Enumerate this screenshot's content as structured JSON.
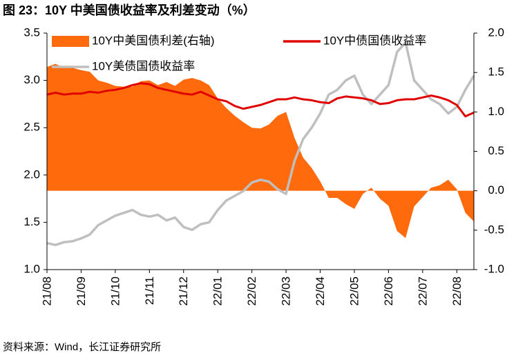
{
  "chart_data": {
    "type": "line",
    "title": "图 23：10Y 中美国债收益率及利差变动（%）",
    "source": "资料来源：Wind，长江证券研究所",
    "categories": [
      "21/08",
      null,
      null,
      null,
      "21/09",
      null,
      null,
      null,
      "21/10",
      null,
      null,
      null,
      "21/11",
      null,
      null,
      null,
      "21/12",
      null,
      null,
      null,
      "22/01",
      null,
      null,
      null,
      "22/02",
      null,
      null,
      null,
      "22/03",
      null,
      null,
      null,
      "22/04",
      null,
      null,
      null,
      "22/05",
      null,
      null,
      null,
      "22/06",
      null,
      null,
      null,
      "22/07",
      null,
      null,
      null,
      "22/08",
      null,
      null
    ],
    "series": [
      {
        "name": "10Y中美国债利差(右轴)",
        "type": "area",
        "axis": "y2",
        "color": "#ff6a0d",
        "values": [
          1.57,
          1.61,
          1.56,
          1.56,
          1.53,
          1.51,
          1.4,
          1.37,
          1.33,
          1.32,
          1.32,
          1.39,
          1.4,
          1.34,
          1.38,
          1.33,
          1.41,
          1.43,
          1.4,
          1.34,
          1.17,
          1.05,
          0.95,
          0.87,
          0.8,
          0.79,
          0.84,
          0.95,
          1.0,
          0.67,
          0.42,
          0.29,
          0.12,
          -0.09,
          -0.09,
          -0.17,
          -0.23,
          -0.04,
          0.04,
          -0.1,
          -0.19,
          -0.51,
          -0.6,
          -0.2,
          -0.08,
          0.04,
          0.07,
          0.14,
          0.02,
          -0.28,
          -0.39
        ]
      },
      {
        "name": "10Y中债国债收益率",
        "type": "line",
        "color": "#e00000",
        "values": [
          2.85,
          2.87,
          2.85,
          2.86,
          2.86,
          2.88,
          2.87,
          2.89,
          2.9,
          2.92,
          2.95,
          2.97,
          2.96,
          2.92,
          2.9,
          2.88,
          2.86,
          2.85,
          2.88,
          2.84,
          2.8,
          2.78,
          2.73,
          2.7,
          2.72,
          2.74,
          2.77,
          2.8,
          2.8,
          2.82,
          2.8,
          2.79,
          2.77,
          2.76,
          2.81,
          2.83,
          2.82,
          2.81,
          2.79,
          2.75,
          2.76,
          2.79,
          2.8,
          2.8,
          2.82,
          2.84,
          2.82,
          2.79,
          2.74,
          2.62,
          2.66
        ]
      },
      {
        "name": "10Y美债国债收益率",
        "type": "line",
        "color": "#bfbfbf",
        "values": [
          1.28,
          1.26,
          1.29,
          1.3,
          1.33,
          1.37,
          1.47,
          1.52,
          1.57,
          1.6,
          1.63,
          1.58,
          1.56,
          1.58,
          1.52,
          1.55,
          1.45,
          1.42,
          1.48,
          1.5,
          1.63,
          1.73,
          1.78,
          1.83,
          1.92,
          1.95,
          1.93,
          1.85,
          1.8,
          2.15,
          2.38,
          2.5,
          2.65,
          2.85,
          2.9,
          3.0,
          3.05,
          2.85,
          2.75,
          2.85,
          2.95,
          3.3,
          3.4,
          3.0,
          2.9,
          2.8,
          2.75,
          2.65,
          2.72,
          2.9,
          3.05
        ]
      }
    ],
    "ylim": [
      1.0,
      3.5
    ],
    "yticks": [
      {
        "value": 1,
        "label": "1.0"
      },
      1.5,
      {
        "value": 2,
        "label": "2.0"
      },
      2.5,
      {
        "value": 3,
        "label": "3.0"
      },
      3.5
    ],
    "y2lim": [
      -1.0,
      2.0
    ],
    "y2ticks": [
      {
        "value": -1,
        "label": "-1.0"
      },
      -0.5,
      {
        "value": 0,
        "label": "0.0"
      },
      0.5,
      {
        "value": 1,
        "label": "1.0"
      },
      1.5,
      {
        "value": 2,
        "label": "2.0"
      }
    ],
    "grid": false,
    "legend": "top"
  }
}
